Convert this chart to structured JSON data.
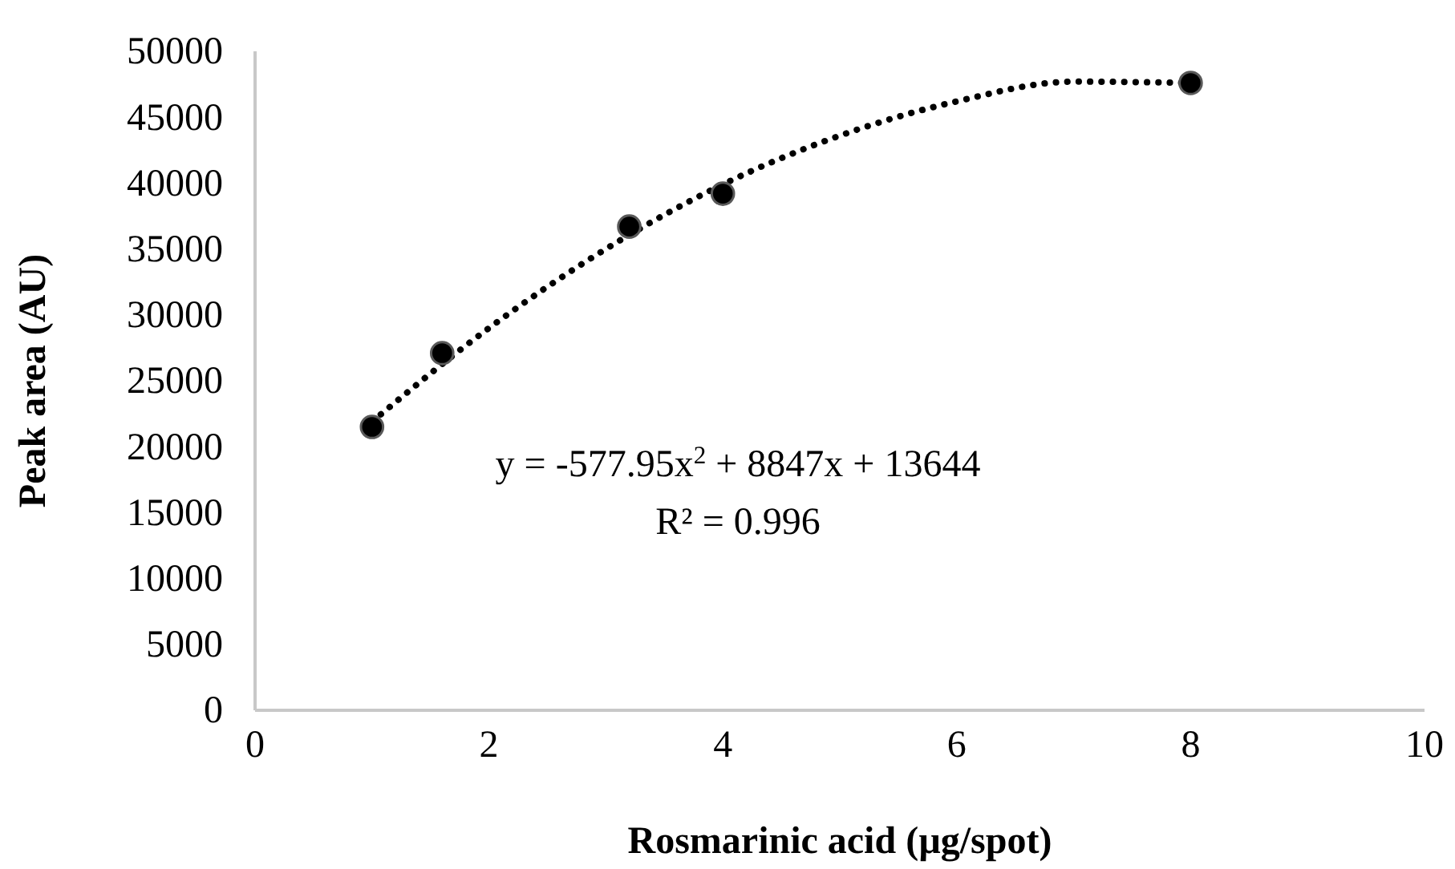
{
  "chart_data": {
    "type": "scatter",
    "xlabel": "Rosmarinic acid (µg/spot)",
    "ylabel": "Peak area (AU)",
    "xlim": [
      0,
      10
    ],
    "xticks": [
      0,
      2,
      4,
      6,
      8,
      10
    ],
    "ylim": [
      0,
      50000
    ],
    "yticks": [
      0,
      5000,
      10000,
      15000,
      20000,
      25000,
      30000,
      35000,
      40000,
      45000,
      50000
    ],
    "grid": false,
    "marker": "circle",
    "series": [
      {
        "color": "#000000",
        "x": [
          1,
          1.6,
          3.2,
          4,
          8
        ],
        "values": [
          21500,
          27100,
          36700,
          39200,
          47600
        ]
      },
      {
        "type": "line",
        "color": "#000000",
        "line_style": "dotted",
        "marker": "none",
        "x": [
          1,
          2,
          3,
          4,
          5,
          6,
          7,
          8
        ],
        "values": [
          21900,
          29000,
          35000,
          39900,
          43600,
          46200,
          47700,
          47600
        ]
      }
    ],
    "annotations": [
      "y = -577.95x$^{2}$ + 8847x + 13644",
      "R² = 0.996"
    ]
  }
}
